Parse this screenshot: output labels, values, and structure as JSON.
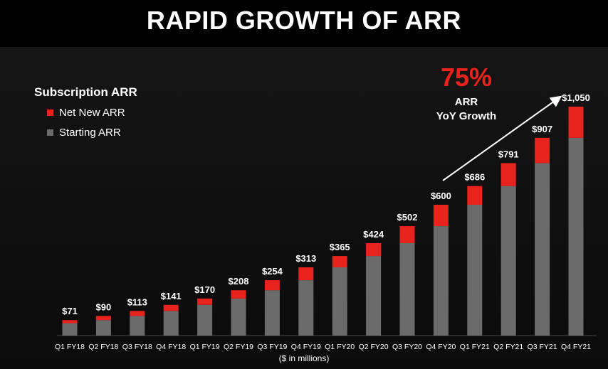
{
  "title": "RAPID GROWTH OF ARR",
  "legend": {
    "title": "Subscription ARR",
    "items": [
      {
        "label": "Net New ARR",
        "color": "#e8221c"
      },
      {
        "label": "Starting ARR",
        "color": "#6b6b6b"
      }
    ]
  },
  "growth": {
    "pct": "75%",
    "line1": "ARR",
    "line2": "YoY Growth"
  },
  "caption": "($ in millions)",
  "chart_data": {
    "type": "bar",
    "stacked": true,
    "title": "RAPID GROWTH OF ARR",
    "xlabel": "($ in millions)",
    "ylabel": "",
    "ylim": [
      0,
      1050
    ],
    "categories": [
      "Q1 FY18",
      "Q2 FY18",
      "Q3 FY18",
      "Q4 FY18",
      "Q1 FY19",
      "Q2 FY19",
      "Q3 FY19",
      "Q4 FY19",
      "Q1 FY20",
      "Q2 FY20",
      "Q3 FY20",
      "Q4 FY20",
      "Q1 FY21",
      "Q2 FY21",
      "Q3 FY21",
      "Q4 FY21"
    ],
    "totals": [
      71,
      90,
      113,
      141,
      170,
      208,
      254,
      313,
      365,
      424,
      502,
      600,
      686,
      791,
      907,
      1050
    ],
    "total_labels": [
      "$71",
      "$90",
      "$113",
      "$141",
      "$170",
      "$208",
      "$254",
      "$313",
      "$365",
      "$424",
      "$502",
      "$600",
      "$686",
      "$791",
      "$907",
      "$1,050"
    ],
    "series": [
      {
        "name": "Starting ARR",
        "color": "#6b6b6b",
        "values": [
          57,
          71,
          90,
          113,
          141,
          170,
          208,
          254,
          313,
          365,
          424,
          502,
          600,
          686,
          791,
          907
        ]
      },
      {
        "name": "Net New ARR",
        "color": "#e8221c",
        "values": [
          14,
          19,
          23,
          28,
          29,
          38,
          46,
          59,
          52,
          59,
          78,
          98,
          86,
          105,
          116,
          143
        ]
      }
    ]
  }
}
